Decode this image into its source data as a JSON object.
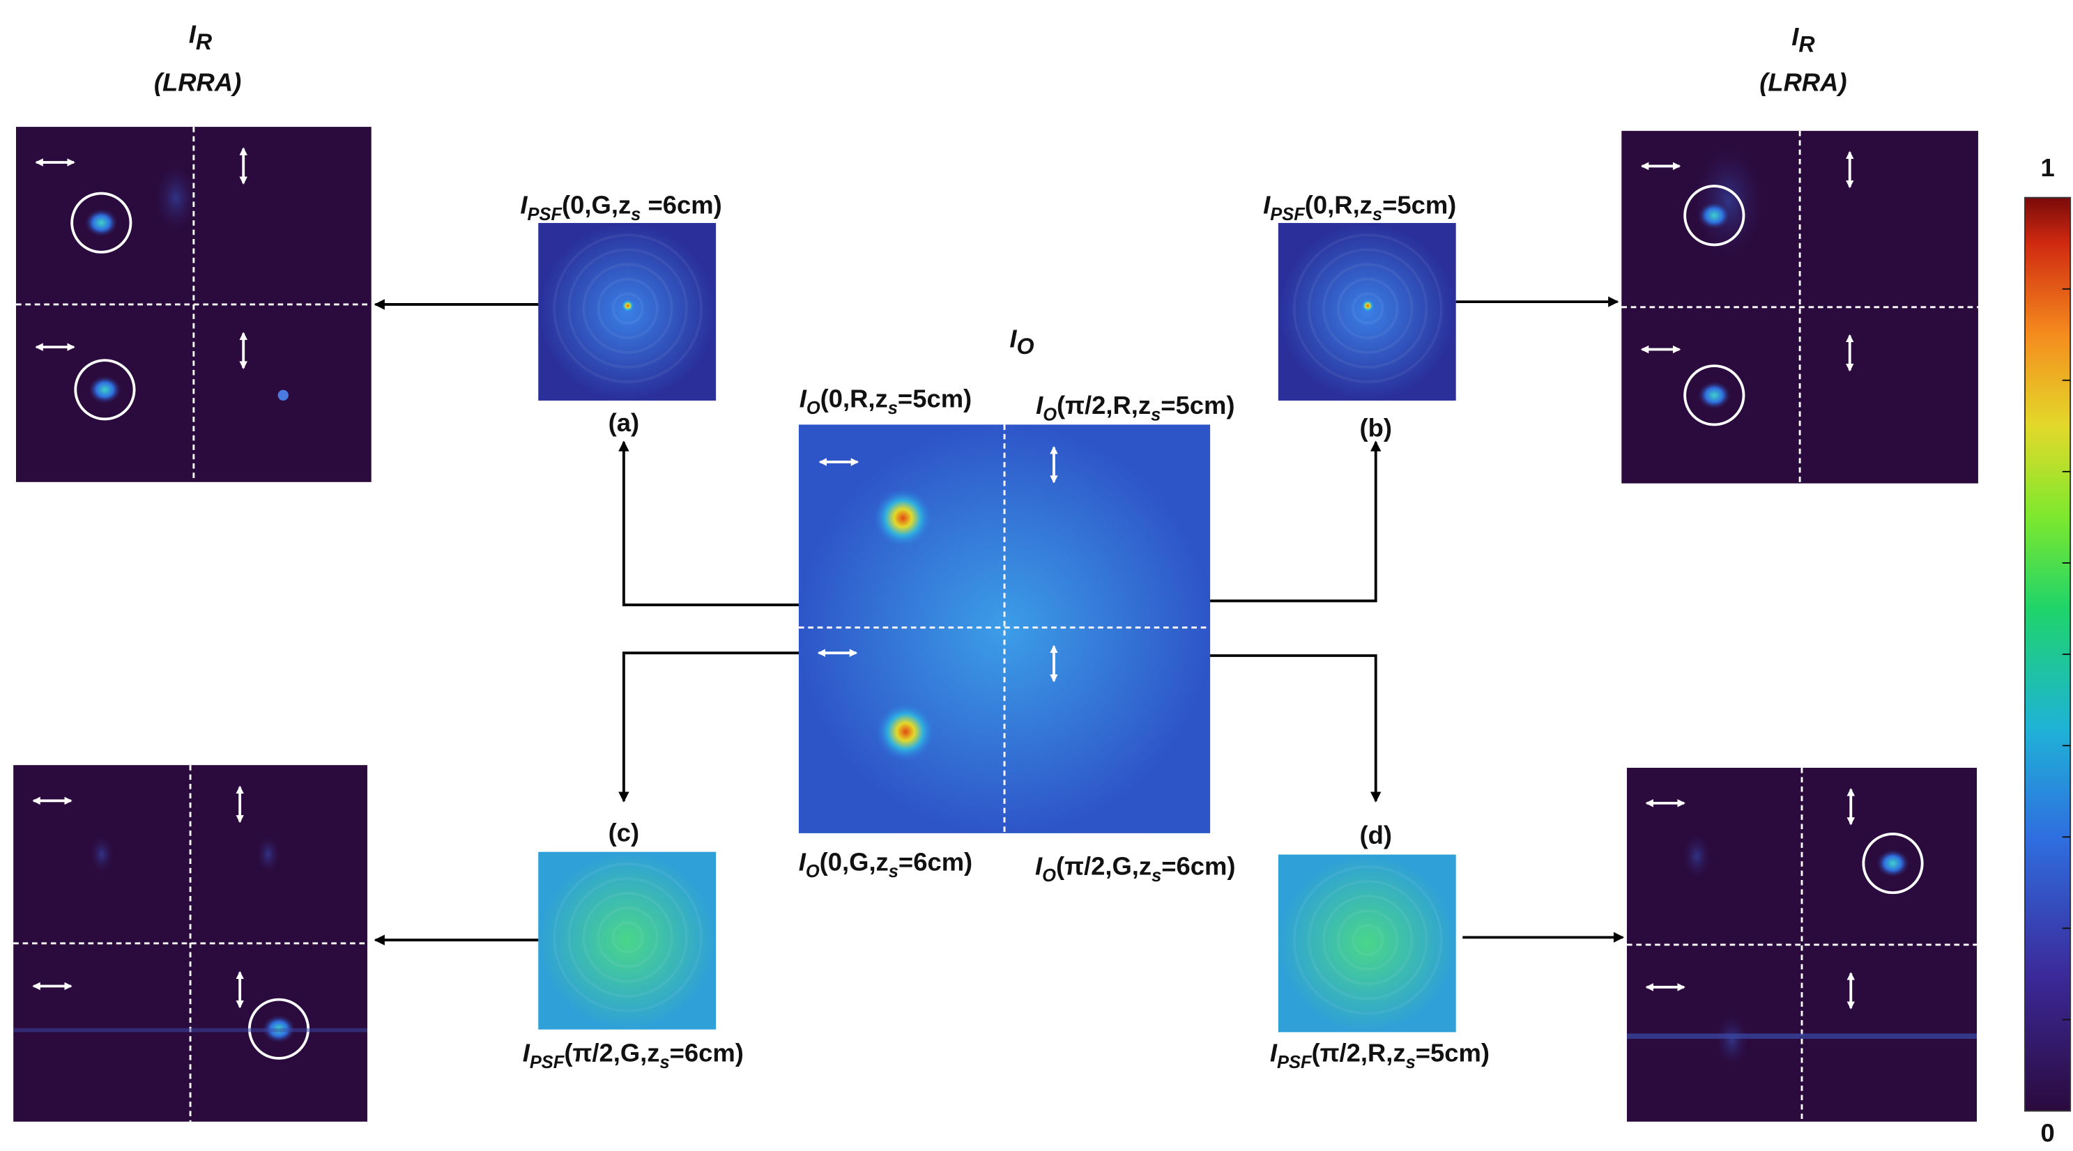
{
  "titles": {
    "ir_left": [
      "I",
      "R"
    ],
    "lrra_left": "(LRRA)",
    "ir_right": [
      "I",
      "R"
    ],
    "lrra_right": "(LRRA)",
    "io": [
      "I",
      "O"
    ]
  },
  "psf_labels": [
    [
      "I",
      "PSF",
      "(0,G,z",
      "s",
      " =6cm)"
    ],
    [
      "I",
      "PSF",
      "(0,R,z",
      "s",
      "=5cm)"
    ],
    [
      "I",
      "PSF",
      "(π/2,G,z",
      "s",
      "=6cm)"
    ],
    [
      "I",
      "PSF",
      "(π/2,R,z",
      "s",
      "=5cm)"
    ]
  ],
  "panel_tags": [
    "(a)",
    "(b)",
    "(c)",
    "(d)"
  ],
  "io_labels": [
    [
      "I",
      "O",
      "(0,R,z",
      "s",
      "=5cm)"
    ],
    [
      "I",
      "O",
      "(π/2,R,z",
      "s",
      "=5cm)"
    ],
    [
      "I",
      "O",
      "(0,G,z",
      "s",
      "=6cm)"
    ],
    [
      "I",
      "O",
      "(π/2,G,z",
      "s",
      "=6cm)"
    ]
  ],
  "colorbar": {
    "max": 1,
    "min": 0
  }
}
